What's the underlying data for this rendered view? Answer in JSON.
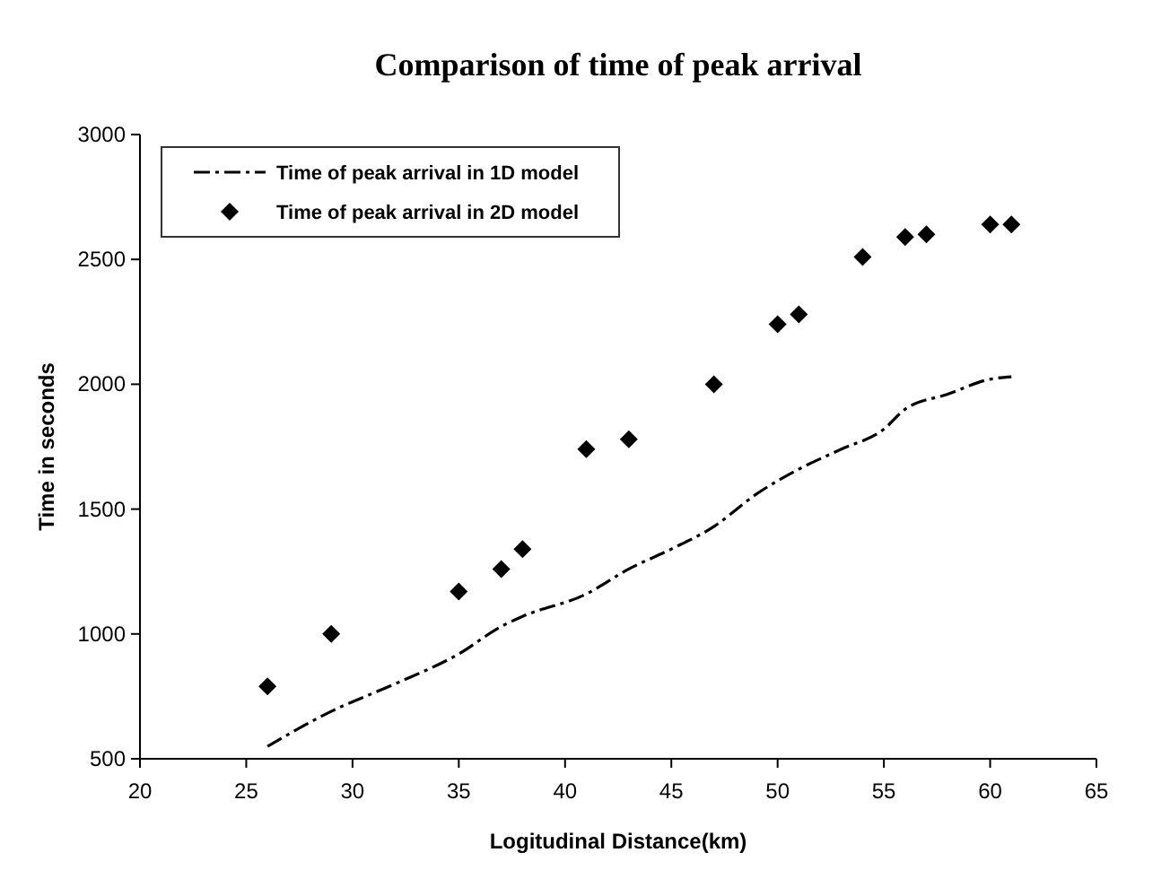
{
  "chart_data": {
    "type": "line",
    "title": "Comparison of  time of peak arrival",
    "xlabel": "Logitudinal Distance(km)",
    "ylabel": "Time in seconds",
    "xlim": [
      20,
      65
    ],
    "xticks": [
      20,
      25,
      30,
      35,
      40,
      45,
      50,
      55,
      60,
      65
    ],
    "ylim": [
      500,
      3000
    ],
    "yticks": [
      500,
      1000,
      1500,
      2000,
      2500,
      3000
    ],
    "grid": false,
    "legend": "top left",
    "series": [
      {
        "name": "Time of peak arrival in 1D model",
        "color": "#000000",
        "line_style": "dashed",
        "marker": "none",
        "x": [
          26,
          29,
          32,
          35,
          37,
          38,
          41,
          43,
          45,
          47,
          49,
          51,
          53,
          55,
          56,
          58,
          60,
          61
        ],
        "values": [
          550,
          690,
          800,
          920,
          1030,
          1070,
          1160,
          1260,
          1340,
          1430,
          1560,
          1660,
          1740,
          1820,
          1900,
          1960,
          2020,
          2030
        ]
      },
      {
        "name": "Time of peak arrival in 2D model",
        "type": "scatter",
        "color": "#000000",
        "marker": "diamond",
        "x": [
          26,
          29,
          35,
          37,
          38,
          41,
          43,
          47,
          50,
          51,
          54,
          56,
          57,
          60,
          61
        ],
        "values": [
          790,
          1000,
          1170,
          1260,
          1340,
          1740,
          1780,
          2000,
          2240,
          2280,
          2510,
          2590,
          2600,
          2640,
          2640
        ]
      }
    ]
  }
}
